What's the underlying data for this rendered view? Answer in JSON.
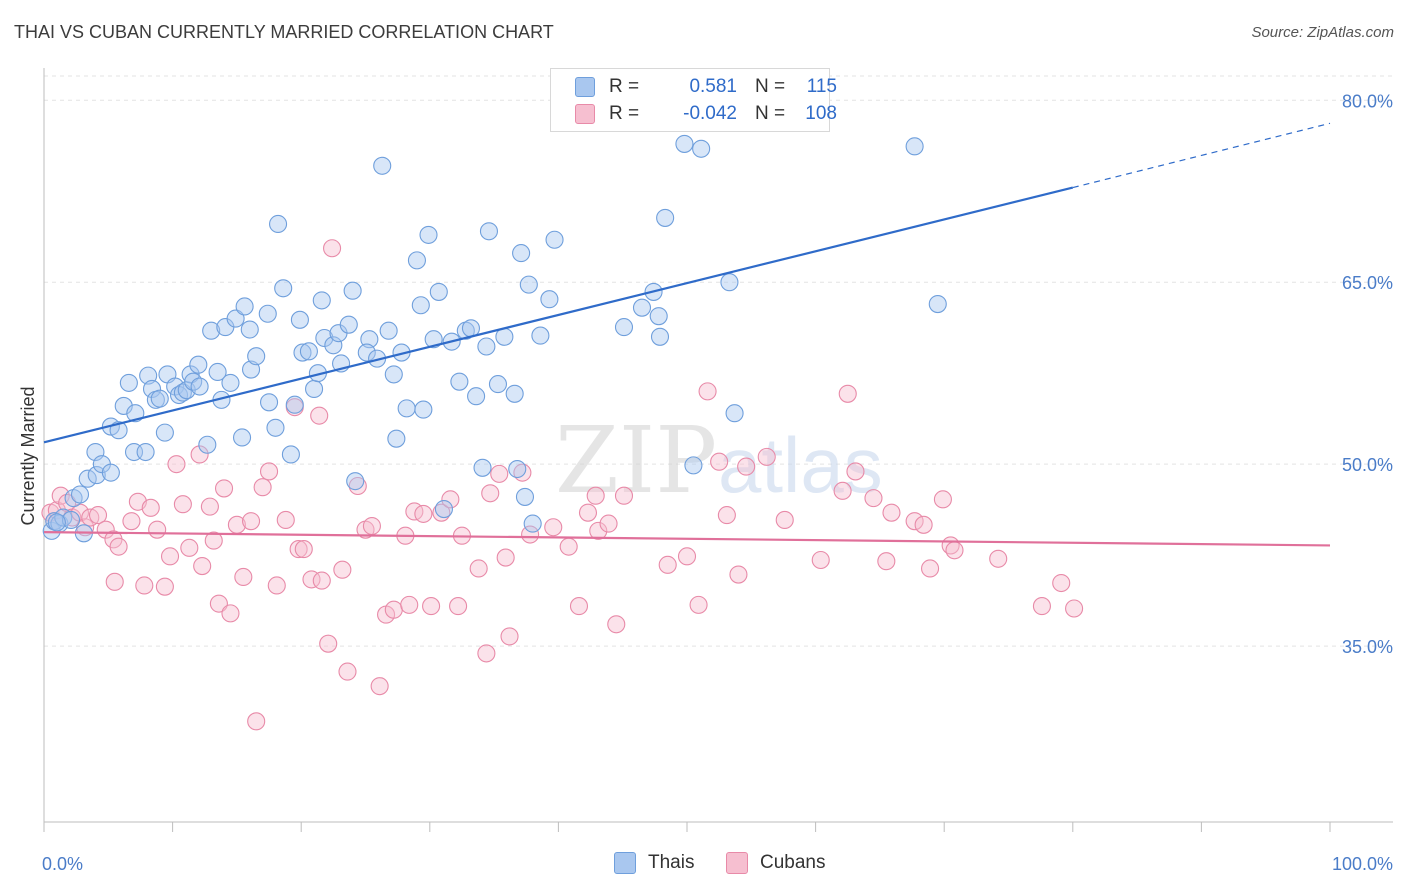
{
  "title": "THAI VS CUBAN CURRENTLY MARRIED CORRELATION CHART",
  "source": "Source: ZipAtlas.com",
  "watermark": {
    "part1": "ZIP",
    "part2": "atlas"
  },
  "legend": {
    "rows": [
      {
        "r_label": "R =",
        "r_value": "0.581",
        "n_label": "N =",
        "n_value": "115",
        "color": "#a9c7ef",
        "border": "#6f9fdc"
      },
      {
        "r_label": "R =",
        "r_value": "-0.042",
        "n_label": "N =",
        "n_value": "108",
        "color": "#f6bfd0",
        "border": "#e88aa8"
      }
    ]
  },
  "bottom_legend": [
    {
      "label": "Thais",
      "color": "#a9c7ef",
      "border": "#6f9fdc"
    },
    {
      "label": "Cubans",
      "color": "#f6bfd0",
      "border": "#e88aa8"
    }
  ],
  "chart_data": {
    "type": "scatter",
    "title": "THAI VS CUBAN CURRENTLY MARRIED CORRELATION CHART",
    "xlabel": "",
    "ylabel": "Currently Married",
    "xlim": [
      0,
      100
    ],
    "ylim": [
      20.5,
      82
    ],
    "x_tick_labels": [
      "0.0%",
      "100.0%"
    ],
    "y_ticks": [
      35,
      50,
      65,
      80
    ],
    "y_tick_labels": [
      "35.0%",
      "50.0%",
      "65.0%",
      "80.0%"
    ],
    "grid": true,
    "legend_position": "top-center",
    "series": [
      {
        "name": "Thais",
        "color": "#6f9fdc",
        "fill": "#a9c7ef",
        "trend": {
          "x0": 0,
          "y0": 51.8,
          "x1": 80,
          "y1": 72.8,
          "dash_to_x": 100,
          "dash_to_y": 78.1,
          "color": "#2f6bc9"
        },
        "points": [
          [
            0.6,
            44.5
          ],
          [
            0.8,
            45.3
          ],
          [
            1.2,
            45.1
          ],
          [
            1.5,
            45.6
          ],
          [
            2.1,
            45.4
          ],
          [
            2.3,
            47.2
          ],
          [
            2.8,
            47.5
          ],
          [
            3.1,
            44.3
          ],
          [
            3.4,
            48.8
          ],
          [
            4.1,
            49.1
          ],
          [
            4.0,
            51.0
          ],
          [
            4.5,
            50.0
          ],
          [
            5.2,
            49.3
          ],
          [
            5.2,
            53.1
          ],
          [
            5.8,
            52.8
          ],
          [
            6.2,
            54.8
          ],
          [
            6.6,
            56.7
          ],
          [
            7.0,
            51.0
          ],
          [
            7.1,
            54.2
          ],
          [
            7.9,
            51.0
          ],
          [
            8.1,
            57.3
          ],
          [
            8.4,
            56.2
          ],
          [
            8.7,
            55.3
          ],
          [
            9.0,
            55.4
          ],
          [
            9.4,
            52.6
          ],
          [
            9.6,
            57.4
          ],
          [
            10.2,
            56.4
          ],
          [
            10.5,
            55.7
          ],
          [
            10.8,
            55.9
          ],
          [
            11.1,
            56.1
          ],
          [
            11.4,
            57.4
          ],
          [
            11.6,
            56.8
          ],
          [
            12.0,
            58.2
          ],
          [
            12.1,
            56.4
          ],
          [
            12.7,
            51.6
          ],
          [
            13.0,
            61.0
          ],
          [
            13.5,
            57.6
          ],
          [
            13.8,
            55.3
          ],
          [
            14.1,
            61.3
          ],
          [
            14.5,
            56.7
          ],
          [
            14.9,
            62.0
          ],
          [
            15.4,
            52.2
          ],
          [
            15.6,
            63.0
          ],
          [
            16.0,
            61.1
          ],
          [
            16.1,
            57.8
          ],
          [
            16.5,
            58.9
          ],
          [
            17.4,
            62.4
          ],
          [
            17.5,
            55.1
          ],
          [
            18.0,
            53.0
          ],
          [
            18.2,
            69.8
          ],
          [
            18.6,
            64.5
          ],
          [
            19.2,
            50.8
          ],
          [
            19.5,
            54.9
          ],
          [
            19.9,
            61.9
          ],
          [
            20.1,
            59.2
          ],
          [
            20.6,
            59.3
          ],
          [
            21.0,
            56.2
          ],
          [
            21.3,
            57.5
          ],
          [
            21.6,
            63.5
          ],
          [
            21.8,
            60.4
          ],
          [
            22.5,
            59.8
          ],
          [
            22.9,
            60.8
          ],
          [
            23.1,
            58.3
          ],
          [
            23.7,
            61.5
          ],
          [
            24.0,
            64.3
          ],
          [
            24.2,
            48.6
          ],
          [
            25.3,
            60.3
          ],
          [
            25.1,
            59.2
          ],
          [
            25.9,
            58.7
          ],
          [
            26.3,
            74.6
          ],
          [
            26.8,
            61.0
          ],
          [
            27.2,
            57.4
          ],
          [
            27.4,
            52.1
          ],
          [
            27.8,
            59.2
          ],
          [
            28.2,
            54.6
          ],
          [
            29.0,
            66.8
          ],
          [
            29.3,
            63.1
          ],
          [
            29.5,
            54.5
          ],
          [
            29.9,
            68.9
          ],
          [
            30.3,
            60.3
          ],
          [
            30.7,
            64.2
          ],
          [
            31.1,
            46.3
          ],
          [
            31.7,
            60.1
          ],
          [
            32.3,
            56.8
          ],
          [
            32.8,
            61.0
          ],
          [
            33.2,
            61.2
          ],
          [
            33.6,
            55.6
          ],
          [
            34.1,
            49.7
          ],
          [
            34.4,
            59.7
          ],
          [
            34.6,
            69.2
          ],
          [
            35.3,
            56.6
          ],
          [
            35.8,
            60.5
          ],
          [
            36.6,
            55.8
          ],
          [
            36.8,
            49.6
          ],
          [
            37.1,
            67.4
          ],
          [
            37.4,
            47.3
          ],
          [
            37.7,
            64.8
          ],
          [
            38.6,
            60.6
          ],
          [
            39.3,
            63.6
          ],
          [
            39.7,
            68.5
          ],
          [
            45.1,
            61.3
          ],
          [
            46.5,
            62.9
          ],
          [
            47.4,
            64.2
          ],
          [
            47.8,
            62.2
          ],
          [
            47.9,
            60.5
          ],
          [
            48.3,
            70.3
          ],
          [
            49.8,
            76.4
          ],
          [
            50.5,
            49.9
          ],
          [
            51.1,
            76.0
          ],
          [
            53.3,
            65.0
          ],
          [
            53.7,
            54.2
          ],
          [
            67.7,
            76.2
          ],
          [
            69.5,
            63.2
          ],
          [
            38.0,
            45.1
          ],
          [
            1.0,
            45.2
          ]
        ]
      },
      {
        "name": "Cubans",
        "color": "#e88aa8",
        "fill": "#f6bfd0",
        "trend": {
          "x0": 0,
          "y0": 44.4,
          "x1": 100,
          "y1": 43.3,
          "color": "#e0709a"
        },
        "points": [
          [
            0.5,
            46.0
          ],
          [
            0.8,
            45.3
          ],
          [
            1.0,
            46.2
          ],
          [
            1.3,
            47.4
          ],
          [
            1.8,
            46.8
          ],
          [
            2.2,
            45.6
          ],
          [
            2.8,
            46.0
          ],
          [
            3.2,
            44.8
          ],
          [
            3.6,
            45.6
          ],
          [
            4.2,
            45.8
          ],
          [
            4.8,
            44.6
          ],
          [
            5.4,
            43.8
          ],
          [
            5.8,
            43.2
          ],
          [
            5.5,
            40.3
          ],
          [
            6.8,
            45.3
          ],
          [
            7.3,
            46.9
          ],
          [
            7.8,
            40.0
          ],
          [
            8.3,
            46.4
          ],
          [
            8.8,
            44.6
          ],
          [
            9.4,
            39.9
          ],
          [
            9.8,
            42.4
          ],
          [
            10.3,
            50.0
          ],
          [
            10.8,
            46.7
          ],
          [
            11.3,
            43.1
          ],
          [
            12.1,
            50.8
          ],
          [
            12.3,
            41.6
          ],
          [
            12.9,
            46.5
          ],
          [
            13.2,
            43.7
          ],
          [
            13.6,
            38.5
          ],
          [
            14.0,
            48.0
          ],
          [
            14.5,
            37.7
          ],
          [
            15.0,
            45.0
          ],
          [
            15.5,
            40.7
          ],
          [
            16.1,
            45.3
          ],
          [
            16.5,
            28.8
          ],
          [
            17.0,
            48.1
          ],
          [
            17.5,
            49.4
          ],
          [
            18.1,
            40.0
          ],
          [
            18.8,
            45.4
          ],
          [
            19.5,
            54.7
          ],
          [
            19.8,
            43.0
          ],
          [
            20.2,
            43.0
          ],
          [
            20.8,
            40.5
          ],
          [
            21.4,
            54.0
          ],
          [
            21.6,
            40.4
          ],
          [
            22.1,
            35.2
          ],
          [
            22.4,
            67.8
          ],
          [
            23.2,
            41.3
          ],
          [
            23.6,
            32.9
          ],
          [
            24.4,
            48.2
          ],
          [
            25.0,
            44.6
          ],
          [
            25.5,
            44.9
          ],
          [
            26.1,
            31.7
          ],
          [
            26.6,
            37.6
          ],
          [
            27.2,
            38.0
          ],
          [
            28.1,
            44.1
          ],
          [
            28.4,
            38.4
          ],
          [
            28.8,
            46.1
          ],
          [
            29.5,
            45.9
          ],
          [
            30.1,
            38.3
          ],
          [
            30.9,
            46.0
          ],
          [
            31.6,
            47.1
          ],
          [
            32.2,
            38.3
          ],
          [
            32.5,
            44.1
          ],
          [
            33.8,
            41.4
          ],
          [
            34.4,
            34.4
          ],
          [
            34.7,
            47.6
          ],
          [
            35.4,
            49.2
          ],
          [
            35.9,
            42.3
          ],
          [
            36.2,
            35.8
          ],
          [
            37.2,
            49.3
          ],
          [
            37.8,
            44.2
          ],
          [
            39.6,
            44.8
          ],
          [
            40.8,
            43.2
          ],
          [
            41.6,
            38.3
          ],
          [
            42.3,
            46.0
          ],
          [
            42.9,
            47.4
          ],
          [
            43.1,
            44.5
          ],
          [
            43.9,
            45.1
          ],
          [
            44.5,
            36.8
          ],
          [
            45.1,
            47.4
          ],
          [
            48.5,
            41.7
          ],
          [
            50.0,
            42.4
          ],
          [
            50.9,
            38.4
          ],
          [
            51.6,
            56.0
          ],
          [
            52.5,
            50.2
          ],
          [
            53.1,
            45.8
          ],
          [
            54.0,
            40.9
          ],
          [
            54.6,
            49.8
          ],
          [
            56.2,
            50.6
          ],
          [
            57.6,
            45.4
          ],
          [
            60.4,
            42.1
          ],
          [
            62.1,
            47.8
          ],
          [
            62.5,
            55.8
          ],
          [
            63.1,
            49.4
          ],
          [
            64.5,
            47.2
          ],
          [
            65.5,
            42.0
          ],
          [
            65.9,
            46.0
          ],
          [
            67.7,
            45.3
          ],
          [
            68.4,
            45.0
          ],
          [
            68.9,
            41.4
          ],
          [
            69.9,
            47.1
          ],
          [
            70.5,
            43.3
          ],
          [
            70.8,
            42.9
          ],
          [
            74.2,
            42.2
          ],
          [
            77.6,
            38.3
          ],
          [
            79.1,
            40.2
          ],
          [
            80.1,
            38.1
          ]
        ]
      }
    ]
  }
}
